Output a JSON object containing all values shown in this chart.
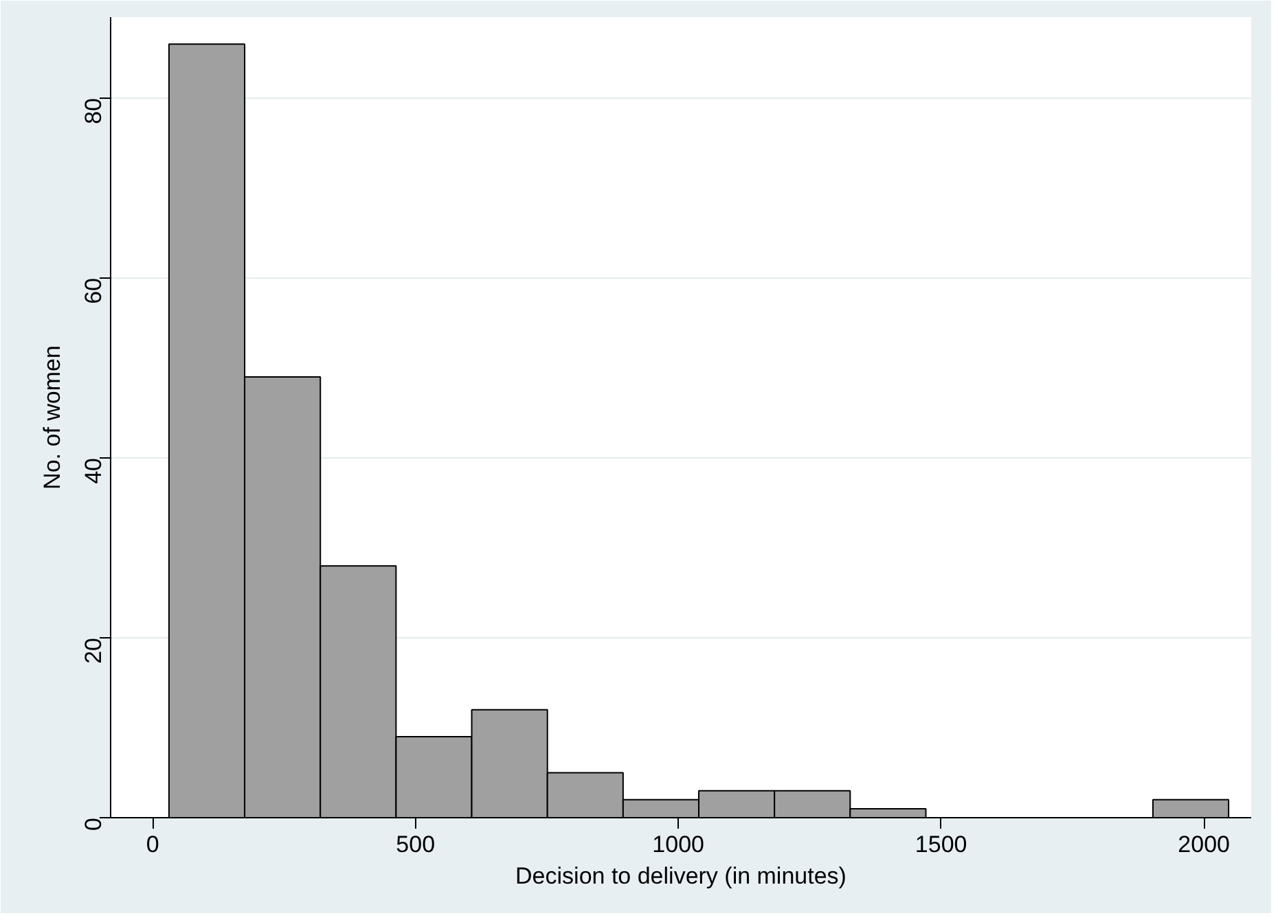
{
  "chart_data": {
    "type": "histogram",
    "xlabel": "Decision to delivery (in minutes)",
    "ylabel": "No. of women",
    "bins": [
      31,
      175,
      319,
      463,
      607,
      751,
      895,
      1039,
      1183,
      1327,
      1471,
      1615,
      1759,
      1903,
      2047
    ],
    "values": [
      86,
      49,
      28,
      9,
      12,
      5,
      2,
      3,
      3,
      1,
      0,
      0,
      0,
      2
    ],
    "color": "#a0a0a0",
    "xlim": [
      -80,
      2090
    ],
    "ylim": [
      0,
      89
    ],
    "xticks": [
      0,
      500,
      1000,
      1500,
      2000
    ],
    "yticks": [
      0,
      20,
      40,
      60,
      80
    ],
    "grid": "y"
  }
}
